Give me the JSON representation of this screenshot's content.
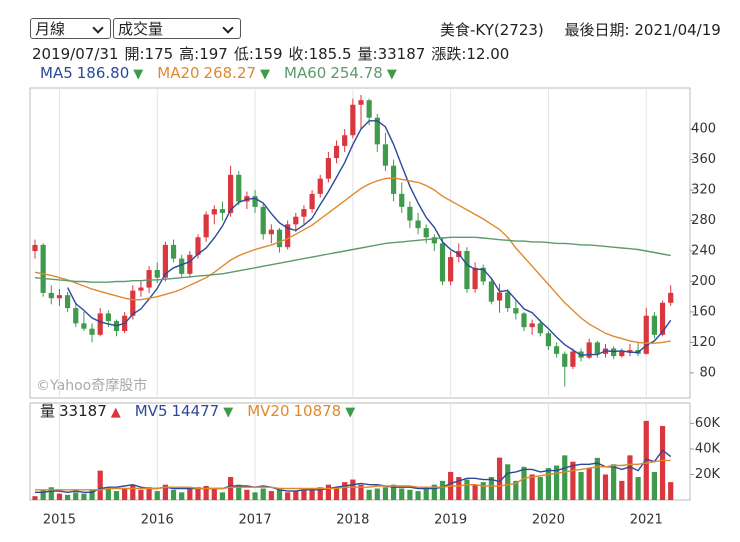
{
  "controls": {
    "period": "月線",
    "indicator": "成交量"
  },
  "header": {
    "stock": "美食-KY(2723)",
    "last_date": "最後日期: 2021/04/19",
    "info": [
      "2019/07/31",
      "開:175",
      "高:197",
      "低:159",
      "收:185.5",
      "量:33187",
      "漲跌:12.00"
    ]
  },
  "chart_data": [
    {
      "type": "candlestick",
      "watermark": "©Yahoo奇摩股市",
      "categories": [
        null,
        null,
        null,
        "2015",
        null,
        null,
        null,
        null,
        null,
        null,
        null,
        null,
        null,
        null,
        null,
        "2016",
        null,
        null,
        null,
        null,
        null,
        null,
        null,
        null,
        null,
        null,
        null,
        "2017",
        null,
        null,
        null,
        null,
        null,
        null,
        null,
        null,
        null,
        null,
        null,
        "2018",
        null,
        null,
        null,
        null,
        null,
        null,
        null,
        null,
        null,
        null,
        null,
        "2019",
        null,
        null,
        null,
        null,
        null,
        null,
        null,
        null,
        null,
        null,
        null,
        "2020",
        null,
        null,
        null,
        null,
        null,
        null,
        null,
        null,
        null,
        null,
        null,
        "2021",
        null,
        null,
        null
      ],
      "open": [
        240,
        248,
        185,
        178,
        182,
        165,
        145,
        138,
        130,
        158,
        148,
        135,
        155,
        188,
        192,
        215,
        205,
        248,
        230,
        210,
        235,
        258,
        288,
        295,
        290,
        340,
        305,
        312,
        298,
        262,
        268,
        245,
        275,
        285,
        295,
        315,
        335,
        362,
        378,
        392,
        432,
        438,
        415,
        380,
        352,
        315,
        298,
        280,
        270,
        258,
        250,
        200,
        232,
        240,
        190,
        218,
        200,
        175,
        185.5,
        165,
        158,
        140,
        145,
        132,
        115,
        105,
        88,
        108,
        100,
        120,
        105,
        112,
        102,
        108,
        110,
        105,
        155,
        130,
        172
      ],
      "high": [
        255,
        250,
        195,
        190,
        186,
        170,
        160,
        145,
        165,
        162,
        150,
        160,
        195,
        200,
        220,
        225,
        252,
        255,
        235,
        240,
        262,
        292,
        300,
        305,
        352,
        345,
        318,
        320,
        302,
        275,
        270,
        280,
        290,
        300,
        320,
        340,
        370,
        385,
        400,
        440,
        445,
        440,
        420,
        395,
        360,
        330,
        305,
        290,
        275,
        262,
        258,
        240,
        250,
        245,
        225,
        222,
        205,
        197,
        190,
        175,
        160,
        150,
        150,
        135,
        120,
        108,
        112,
        112,
        125,
        122,
        118,
        115,
        112,
        118,
        120,
        165,
        160,
        175,
        195
      ],
      "low": [
        230,
        180,
        170,
        168,
        160,
        140,
        135,
        120,
        128,
        140,
        128,
        132,
        150,
        180,
        185,
        198,
        200,
        225,
        205,
        205,
        230,
        252,
        275,
        280,
        285,
        300,
        295,
        290,
        255,
        250,
        238,
        242,
        265,
        275,
        290,
        310,
        330,
        355,
        370,
        388,
        400,
        405,
        370,
        345,
        305,
        290,
        270,
        262,
        250,
        240,
        195,
        195,
        225,
        185,
        185,
        195,
        170,
        159,
        160,
        150,
        135,
        130,
        128,
        110,
        100,
        62,
        85,
        95,
        98,
        100,
        100,
        98,
        100,
        102,
        102,
        104,
        125,
        128,
        168
      ],
      "close": [
        248,
        185,
        178,
        182,
        165,
        145,
        138,
        130,
        158,
        148,
        135,
        155,
        188,
        192,
        215,
        205,
        248,
        230,
        210,
        235,
        258,
        288,
        295,
        290,
        340,
        305,
        312,
        298,
        262,
        268,
        245,
        275,
        285,
        295,
        315,
        335,
        362,
        378,
        392,
        432,
        438,
        415,
        380,
        352,
        315,
        298,
        280,
        270,
        258,
        250,
        200,
        232,
        240,
        190,
        218,
        200,
        173.5,
        185.5,
        165,
        158,
        140,
        145,
        132,
        115,
        105,
        88,
        108,
        100,
        120,
        105,
        112,
        102,
        108,
        110,
        105,
        155,
        130,
        172,
        185
      ],
      "up_color": "#d9363e",
      "down_color": "#3f9a4c",
      "series": [
        {
          "name": "MA5",
          "color": "#2b4a9b",
          "current": "186.80",
          "trend": "▼",
          "values": [
            null,
            null,
            null,
            null,
            192,
            171,
            162,
            152,
            147,
            144,
            142,
            145,
            157,
            164,
            177,
            191,
            210,
            218,
            222,
            226,
            236,
            244,
            257,
            273,
            294,
            304,
            308,
            309,
            303,
            289,
            277,
            270,
            267,
            274,
            283,
            301,
            318,
            337,
            356,
            380,
            400,
            411,
            411,
            403,
            380,
            352,
            325,
            303,
            284,
            271,
            252,
            242,
            236,
            222,
            216,
            216,
            204,
            186.8,
            188,
            176,
            164,
            159,
            148,
            138,
            127,
            117,
            110,
            103,
            104,
            104,
            109,
            108,
            109,
            107,
            107,
            116,
            122,
            134,
            149
          ]
        },
        {
          "name": "MA20",
          "color": "#e0892c",
          "current": "268.27",
          "trend": "▼",
          "values": [
            212,
            210,
            208,
            205,
            202,
            198,
            194,
            190,
            187,
            184,
            181,
            178,
            176,
            176,
            178,
            180,
            183,
            186,
            190,
            195,
            200,
            205,
            212,
            220,
            228,
            234,
            238,
            242,
            245,
            248,
            252,
            256,
            262,
            268,
            274,
            282,
            290,
            298,
            306,
            314,
            322,
            328,
            332,
            335,
            336,
            334,
            332,
            330,
            326,
            320,
            312,
            306,
            300,
            294,
            288,
            282,
            275,
            268.27,
            258,
            244,
            232,
            220,
            208,
            196,
            184,
            172,
            162,
            152,
            144,
            138,
            132,
            128,
            125,
            122,
            120,
            119,
            119,
            120,
            122
          ]
        },
        {
          "name": "MA60",
          "color": "#5d9a6d",
          "current": "254.78",
          "trend": "▼",
          "values": [
            205,
            204,
            203,
            202,
            201,
            200,
            200,
            199,
            199,
            199,
            200,
            200,
            201,
            201,
            202,
            202,
            203,
            204,
            205,
            206,
            207,
            208,
            209,
            210,
            212,
            214,
            216,
            218,
            220,
            222,
            224,
            226,
            228,
            230,
            232,
            234,
            236,
            238,
            240,
            242,
            244,
            246,
            248,
            250,
            251,
            252,
            253,
            254,
            255,
            256,
            257,
            258,
            258,
            258,
            258,
            257,
            256,
            254.78,
            254,
            253,
            253,
            252,
            252,
            251,
            250,
            250,
            249,
            248,
            248,
            247,
            246,
            245,
            244,
            243,
            242,
            240,
            238,
            236,
            234
          ]
        }
      ],
      "ylim": [
        47,
        454
      ],
      "yticks": [
        80,
        120,
        160,
        200,
        240,
        280,
        320,
        360,
        400
      ],
      "grid": "x"
    },
    {
      "type": "volume",
      "name": "量",
      "current": 33187,
      "trend": "▲",
      "values": [
        3000,
        8000,
        10000,
        5000,
        4000,
        6000,
        5000,
        8000,
        23000,
        10000,
        7000,
        9000,
        12000,
        8000,
        10000,
        7000,
        12000,
        8000,
        6000,
        9000,
        10000,
        11000,
        9000,
        6000,
        18000,
        12000,
        8000,
        6000,
        9000,
        7000,
        8000,
        6000,
        7000,
        8000,
        9000,
        10000,
        12000,
        10000,
        14000,
        16000,
        12000,
        8000,
        9000,
        10000,
        12000,
        9000,
        8000,
        7000,
        10000,
        12000,
        15000,
        22000,
        18000,
        16000,
        12000,
        14000,
        18000,
        33187,
        28000,
        15000,
        26000,
        20000,
        18000,
        25000,
        27000,
        35000,
        30000,
        22000,
        25000,
        33000,
        20000,
        28000,
        15000,
        35000,
        18000,
        62000,
        22000,
        58000,
        14000
      ],
      "series": [
        {
          "name": "MV5",
          "color": "#2b4a9b",
          "current": 14477,
          "trend": "▼",
          "values": [
            6000,
            6000,
            7000,
            7000,
            6000,
            7000,
            6000,
            6000,
            9000,
            10000,
            10000,
            11000,
            12000,
            10000,
            9000,
            9000,
            10000,
            9000,
            9000,
            9000,
            9000,
            9000,
            9000,
            9000,
            11000,
            11000,
            11000,
            10000,
            11000,
            10000,
            8000,
            7000,
            7000,
            8000,
            8000,
            8000,
            9000,
            10000,
            11000,
            12000,
            13000,
            12000,
            12000,
            11000,
            10000,
            10000,
            10000,
            9000,
            9000,
            9000,
            10000,
            13000,
            15000,
            17000,
            17000,
            16000,
            16000,
            14477,
            21000,
            22000,
            24000,
            24000,
            22000,
            23000,
            23000,
            25000,
            27000,
            28000,
            28000,
            29000,
            26000,
            26000,
            24000,
            26000,
            23000,
            32000,
            30000,
            39000,
            34000
          ]
        },
        {
          "name": "MV20",
          "color": "#e0892c",
          "current": 10878,
          "trend": "▼",
          "values": [
            8000,
            8000,
            8000,
            8000,
            8000,
            8000,
            8000,
            8000,
            8000,
            9000,
            9000,
            9000,
            9000,
            9000,
            9000,
            9000,
            10000,
            10000,
            10000,
            10000,
            9000,
            9000,
            9000,
            9000,
            10000,
            10000,
            10000,
            10000,
            10000,
            10000,
            9000,
            9000,
            9000,
            9000,
            9000,
            9000,
            9000,
            9000,
            10000,
            10000,
            10000,
            10000,
            11000,
            11000,
            11000,
            11000,
            11000,
            10000,
            10000,
            10000,
            10000,
            11000,
            11000,
            12000,
            12000,
            11000,
            11000,
            10878,
            12000,
            13000,
            17000,
            18000,
            19000,
            20000,
            21000,
            22000,
            23000,
            24000,
            25000,
            26000,
            26000,
            27000,
            27000,
            28000,
            28000,
            29000,
            30000,
            31000,
            31000
          ]
        }
      ],
      "ylim": [
        0,
        76000
      ],
      "yticks": [
        {
          "value": 20000,
          "label": "20K"
        },
        {
          "value": 40000,
          "label": "40K"
        },
        {
          "value": 60000,
          "label": "60K"
        }
      ]
    }
  ]
}
